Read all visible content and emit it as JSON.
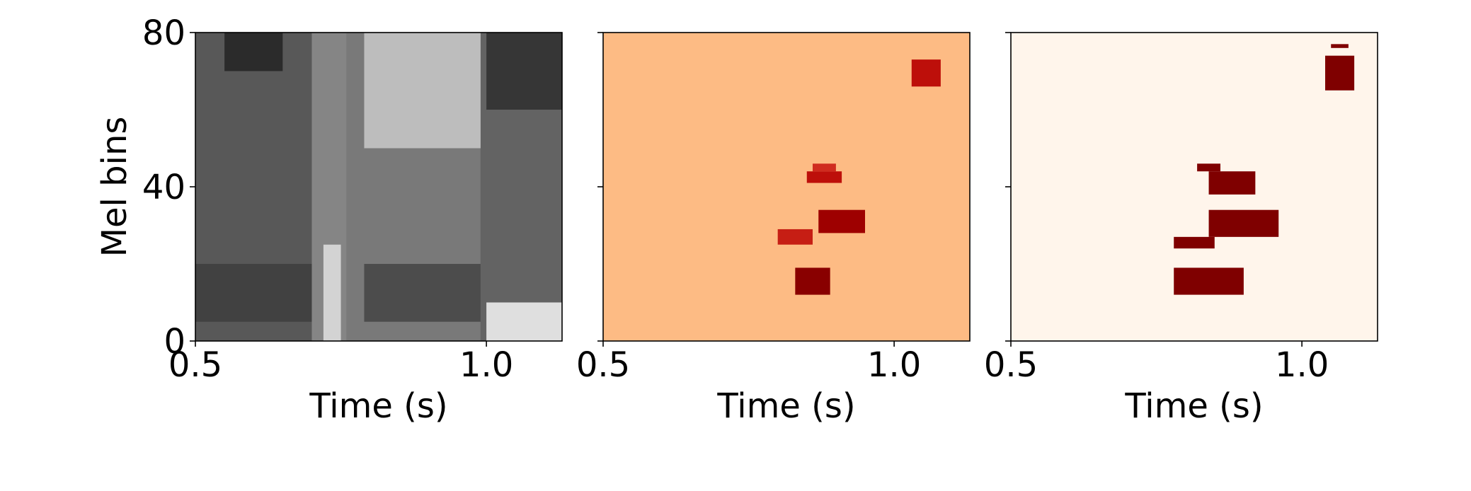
{
  "chart_data": [
    {
      "type": "heatmap",
      "panel": "spectrogram",
      "colormap": "gray",
      "xlabel": "Time (s)",
      "ylabel": "Mel bins",
      "xlim": [
        0.5,
        1.13
      ],
      "ylim": [
        0,
        80
      ],
      "xticks": [
        "0.5",
        "1.0"
      ],
      "yticks": [
        "0",
        "40",
        "80"
      ],
      "regions": [
        {
          "t": [
            0.5,
            0.7
          ],
          "mel": [
            0,
            80
          ],
          "level": 0.3
        },
        {
          "t": [
            0.7,
            0.76
          ],
          "mel": [
            0,
            80
          ],
          "level": 0.5
        },
        {
          "t": [
            0.76,
            0.99
          ],
          "mel": [
            0,
            80
          ],
          "level": 0.45
        },
        {
          "t": [
            0.99,
            1.13
          ],
          "mel": [
            0,
            80
          ],
          "level": 0.35
        },
        {
          "t": [
            0.5,
            0.7
          ],
          "mel": [
            5,
            20
          ],
          "level": 0.2
        },
        {
          "t": [
            0.79,
            0.99
          ],
          "mel": [
            5,
            20
          ],
          "level": 0.25
        },
        {
          "t": [
            0.79,
            0.99
          ],
          "mel": [
            50,
            80
          ],
          "level": 0.75
        },
        {
          "t": [
            0.55,
            0.65
          ],
          "mel": [
            70,
            80
          ],
          "level": 0.1
        },
        {
          "t": [
            1.0,
            1.13
          ],
          "mel": [
            60,
            80
          ],
          "level": 0.15
        },
        {
          "t": [
            0.72,
            0.75
          ],
          "mel": [
            0,
            25
          ],
          "level": 0.85
        },
        {
          "t": [
            1.0,
            1.13
          ],
          "mel": [
            0,
            10
          ],
          "level": 0.9
        }
      ]
    },
    {
      "type": "heatmap",
      "panel": "attribution",
      "colormap": "OrRd",
      "xlabel": "Time (s)",
      "xlim": [
        0.5,
        1.13
      ],
      "ylim": [
        0,
        80
      ],
      "xticks": [
        "0.5",
        "1.0"
      ],
      "regions": [
        {
          "t": [
            0.5,
            1.13
          ],
          "mel": [
            0,
            80
          ],
          "level": 0.25
        },
        {
          "t": [
            0.83,
            0.89
          ],
          "mel": [
            12,
            19
          ],
          "level": 0.95
        },
        {
          "t": [
            0.87,
            0.95
          ],
          "mel": [
            28,
            34
          ],
          "level": 0.85
        },
        {
          "t": [
            0.8,
            0.86
          ],
          "mel": [
            25,
            29
          ],
          "level": 0.65
        },
        {
          "t": [
            0.85,
            0.91
          ],
          "mel": [
            41,
            44
          ],
          "level": 0.7
        },
        {
          "t": [
            1.03,
            1.08
          ],
          "mel": [
            66,
            73
          ],
          "level": 0.7
        },
        {
          "t": [
            0.86,
            0.9
          ],
          "mel": [
            44,
            46
          ],
          "level": 0.6
        }
      ]
    },
    {
      "type": "heatmap",
      "panel": "mask",
      "colormap": "binary-red",
      "xlabel": "Time (s)",
      "xlim": [
        0.5,
        1.13
      ],
      "ylim": [
        0,
        80
      ],
      "xticks": [
        "0.5",
        "1.0"
      ],
      "regions": [
        {
          "t": [
            0.78,
            0.9
          ],
          "mel": [
            12,
            19
          ],
          "level": 1
        },
        {
          "t": [
            0.78,
            0.85
          ],
          "mel": [
            24,
            27
          ],
          "level": 1
        },
        {
          "t": [
            0.84,
            0.96
          ],
          "mel": [
            27,
            34
          ],
          "level": 1
        },
        {
          "t": [
            0.84,
            0.92
          ],
          "mel": [
            38,
            44
          ],
          "level": 1
        },
        {
          "t": [
            0.82,
            0.86
          ],
          "mel": [
            44,
            46
          ],
          "level": 1
        },
        {
          "t": [
            1.04,
            1.09
          ],
          "mel": [
            65,
            74
          ],
          "level": 1
        },
        {
          "t": [
            1.05,
            1.08
          ],
          "mel": [
            76,
            77
          ],
          "level": 1
        }
      ]
    }
  ]
}
